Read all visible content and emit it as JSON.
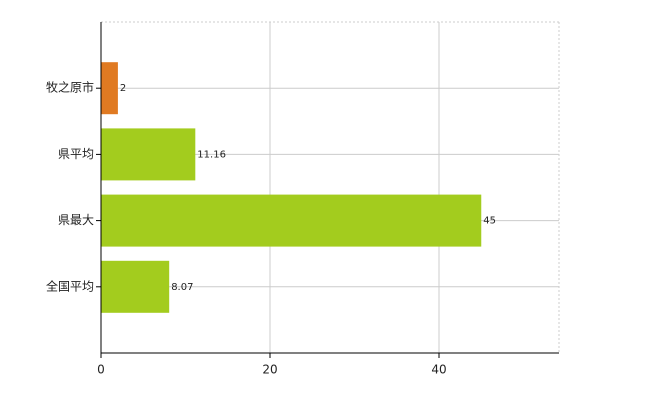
{
  "chart_data": {
    "type": "hbar",
    "categories": [
      "牧之原市",
      "県平均",
      "県最大",
      "全国平均"
    ],
    "values": [
      2,
      11.16,
      45,
      8.07
    ],
    "colors": [
      "#e07a22",
      "#a3cc1e",
      "#a3cc1e",
      "#a3cc1e"
    ],
    "xlim": [
      0,
      54.2
    ],
    "xticks": [
      0,
      20,
      40
    ],
    "grid": true
  }
}
